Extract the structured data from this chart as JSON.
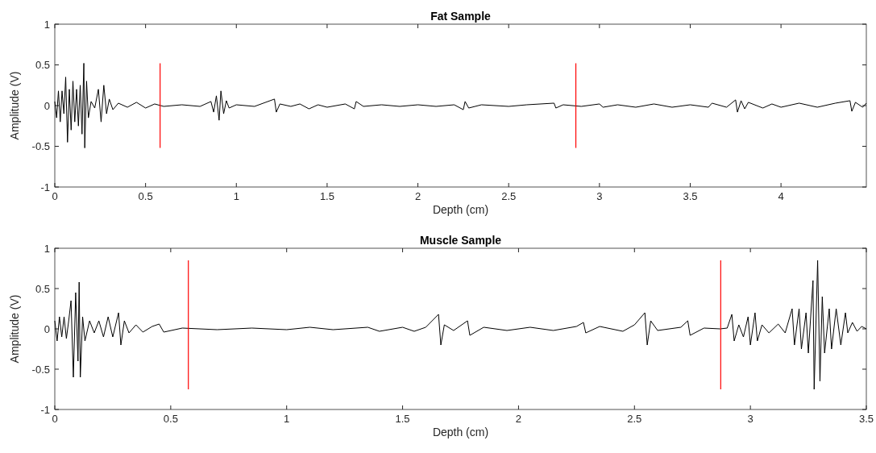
{
  "chart_data": [
    {
      "type": "line",
      "title": "Fat Sample",
      "xlabel": "Depth (cm)",
      "ylabel": "Amplitude (V)",
      "xlim": [
        0,
        4.47
      ],
      "xticks": [
        0,
        0.5,
        1,
        1.5,
        2,
        2.5,
        3,
        3.5,
        4
      ],
      "ylim": [
        -1,
        1
      ],
      "yticks": [
        -1,
        -0.5,
        0,
        0.5,
        1
      ],
      "grid": false,
      "series": [
        {
          "color": "#000000",
          "x": [
            0,
            0.01,
            0.02,
            0.03,
            0.04,
            0.05,
            0.06,
            0.07,
            0.08,
            0.09,
            0.1,
            0.11,
            0.12,
            0.13,
            0.14,
            0.15,
            0.16,
            0.165,
            0.175,
            0.185,
            0.2,
            0.22,
            0.24,
            0.255,
            0.27,
            0.285,
            0.3,
            0.32,
            0.35,
            0.4,
            0.45,
            0.5,
            0.55,
            0.6,
            0.7,
            0.8,
            0.86,
            0.875,
            0.89,
            0.905,
            0.915,
            0.93,
            0.945,
            0.96,
            1.0,
            1.1,
            1.21,
            1.22,
            1.24,
            1.3,
            1.35,
            1.4,
            1.45,
            1.5,
            1.6,
            1.65,
            1.66,
            1.7,
            1.8,
            1.9,
            2.0,
            2.1,
            2.2,
            2.25,
            2.26,
            2.28,
            2.35,
            2.5,
            2.6,
            2.75,
            2.76,
            2.8,
            2.9,
            3.0,
            3.02,
            3.1,
            3.2,
            3.3,
            3.4,
            3.5,
            3.6,
            3.62,
            3.7,
            3.75,
            3.76,
            3.78,
            3.8,
            3.82,
            3.9,
            3.95,
            4.0,
            4.1,
            4.2,
            4.3,
            4.38,
            4.39,
            4.41,
            4.45,
            4.47
          ],
          "values": [
            0.05,
            -0.15,
            0.18,
            -0.2,
            0.18,
            -0.1,
            0.35,
            -0.45,
            0.2,
            -0.3,
            0.3,
            -0.2,
            0.2,
            -0.25,
            0.25,
            -0.35,
            0.52,
            -0.52,
            0.3,
            -0.15,
            0.05,
            -0.03,
            0.2,
            -0.2,
            0.25,
            -0.1,
            0.08,
            -0.05,
            0.03,
            -0.02,
            0.04,
            -0.03,
            0.02,
            -0.01,
            0.01,
            -0.01,
            0.05,
            -0.08,
            0.12,
            -0.18,
            0.18,
            -0.1,
            0.06,
            -0.03,
            0.01,
            -0.01,
            0.08,
            -0.08,
            0.02,
            -0.01,
            0.02,
            -0.04,
            0.01,
            -0.02,
            0.02,
            -0.04,
            0.05,
            -0.01,
            0.01,
            -0.01,
            0.01,
            -0.01,
            0.01,
            -0.05,
            0.05,
            -0.03,
            0.01,
            -0.01,
            0.01,
            0.03,
            -0.03,
            0.01,
            -0.01,
            0.02,
            -0.02,
            0.01,
            -0.02,
            0.02,
            -0.02,
            0.01,
            -0.02,
            0.03,
            -0.02,
            0.07,
            -0.08,
            0.06,
            -0.04,
            0.04,
            -0.03,
            0.02,
            -0.02,
            0.03,
            -0.02,
            0.03,
            0.06,
            -0.07,
            0.04,
            -0.02,
            0.03
          ]
        },
        {
          "color": "#ff0000",
          "x": [
            0.58,
            0.58
          ],
          "values": [
            -0.52,
            0.52
          ]
        },
        {
          "color": "#ff0000",
          "x": [
            2.87,
            2.87
          ],
          "values": [
            -0.52,
            0.52
          ]
        }
      ]
    },
    {
      "type": "line",
      "title": "Muscle Sample",
      "xlabel": "Depth (cm)",
      "ylabel": "Amplitude (V)",
      "xlim": [
        0,
        3.5
      ],
      "xticks": [
        0,
        0.5,
        1,
        1.5,
        2,
        2.5,
        3,
        3.5
      ],
      "ylim": [
        -1,
        1
      ],
      "yticks": [
        -1,
        -0.5,
        0,
        0.5,
        1
      ],
      "grid": false,
      "series": [
        {
          "color": "#000000",
          "x": [
            0,
            0.01,
            0.02,
            0.03,
            0.04,
            0.05,
            0.06,
            0.07,
            0.08,
            0.09,
            0.1,
            0.105,
            0.11,
            0.12,
            0.13,
            0.15,
            0.17,
            0.19,
            0.21,
            0.23,
            0.25,
            0.275,
            0.285,
            0.3,
            0.32,
            0.35,
            0.38,
            0.42,
            0.45,
            0.47,
            0.55,
            0.7,
            0.85,
            1.0,
            1.1,
            1.2,
            1.35,
            1.4,
            1.5,
            1.55,
            1.6,
            1.655,
            1.665,
            1.68,
            1.72,
            1.78,
            1.79,
            1.85,
            1.95,
            2.05,
            2.15,
            2.25,
            2.28,
            2.29,
            2.35,
            2.45,
            2.5,
            2.545,
            2.555,
            2.57,
            2.6,
            2.7,
            2.73,
            2.74,
            2.8,
            2.87,
            2.9,
            2.92,
            2.93,
            2.95,
            2.97,
            2.99,
            3.0,
            3.02,
            3.03,
            3.05,
            3.08,
            3.12,
            3.15,
            3.18,
            3.19,
            3.21,
            3.22,
            3.24,
            3.25,
            3.27,
            3.275,
            3.29,
            3.3,
            3.31,
            3.32,
            3.34,
            3.35,
            3.37,
            3.39,
            3.41,
            3.42,
            3.44,
            3.46,
            3.48,
            3.5
          ],
          "values": [
            0.1,
            -0.15,
            0.15,
            -0.1,
            0.15,
            -0.12,
            0.1,
            0.35,
            -0.6,
            0.45,
            -0.4,
            0.58,
            -0.6,
            0.15,
            -0.15,
            0.1,
            -0.05,
            0.1,
            -0.1,
            0.15,
            -0.1,
            0.2,
            -0.2,
            0.1,
            -0.05,
            0.05,
            -0.04,
            0.03,
            0.06,
            -0.04,
            0.01,
            -0.01,
            0.01,
            -0.01,
            0.02,
            -0.01,
            0.02,
            -0.03,
            0.02,
            -0.03,
            0.02,
            0.18,
            -0.2,
            0.05,
            -0.02,
            0.1,
            -0.08,
            0.02,
            -0.02,
            0.02,
            -0.02,
            0.03,
            0.08,
            -0.05,
            0.03,
            -0.03,
            0.05,
            0.2,
            -0.2,
            0.1,
            -0.02,
            0.02,
            0.1,
            -0.08,
            0.01,
            0,
            0.01,
            0.18,
            -0.15,
            0.05,
            -0.1,
            0.15,
            -0.2,
            0.2,
            -0.15,
            0.05,
            -0.05,
            0.06,
            -0.05,
            0.25,
            -0.2,
            0.25,
            -0.25,
            0.2,
            -0.3,
            0.6,
            -0.75,
            0.85,
            -0.65,
            0.4,
            -0.3,
            0.25,
            -0.25,
            0.25,
            -0.2,
            0.2,
            -0.05,
            0.08,
            -0.03,
            0.03,
            0
          ]
        },
        {
          "color": "#ff0000",
          "x": [
            0.576,
            0.576
          ],
          "values": [
            -0.75,
            0.85
          ]
        },
        {
          "color": "#ff0000",
          "x": [
            2.872,
            2.872
          ],
          "values": [
            -0.75,
            0.85
          ]
        }
      ]
    }
  ]
}
